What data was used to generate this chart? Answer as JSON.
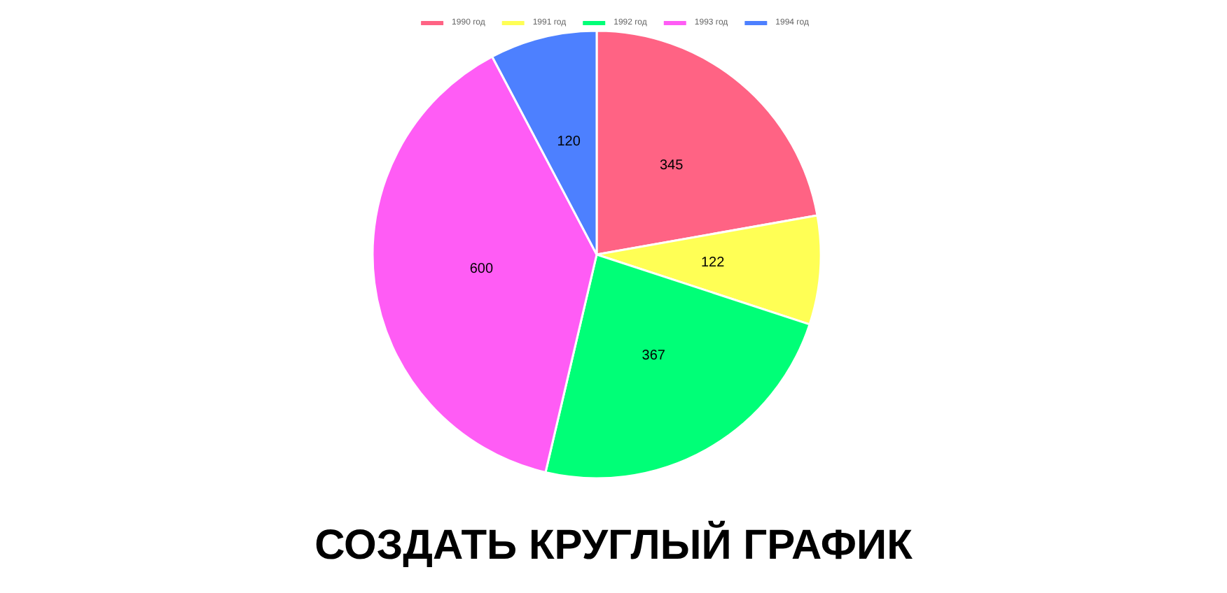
{
  "chart_data": {
    "type": "pie",
    "title": "СОЗДАТЬ КРУГЛЫЙ ГРАФИК",
    "categories": [
      "1990 год",
      "1991 год",
      "1992 год",
      "1993 год",
      "1994 год"
    ],
    "values": [
      345,
      122,
      367,
      600,
      120
    ],
    "colors": [
      "#ff6384",
      "#ffff55",
      "#00ff77",
      "#ff5cf5",
      "#4d80ff"
    ],
    "data_labels": true,
    "legend": "top"
  }
}
